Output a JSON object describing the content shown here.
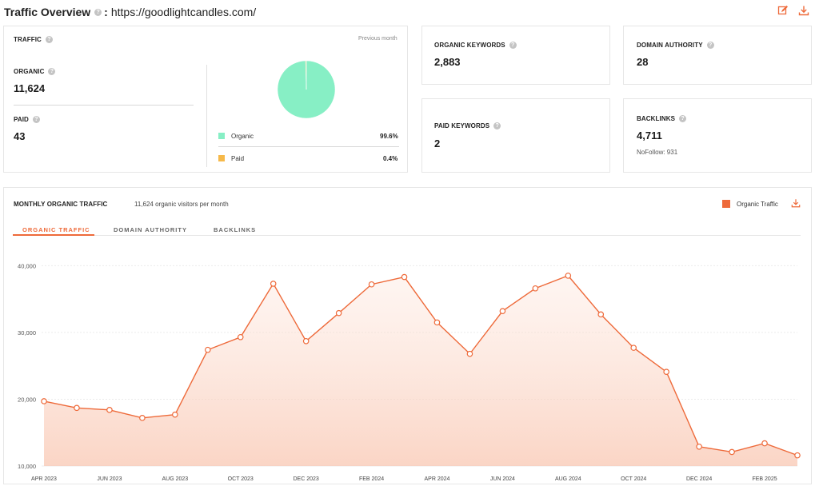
{
  "header": {
    "title": "Traffic Overview",
    "separator": ":",
    "domain": "https://goodlightcandles.com/"
  },
  "traffic_card": {
    "label": "TRAFFIC",
    "period": "Previous month",
    "organic_label": "ORGANIC",
    "organic_value": "11,624",
    "paid_label": "PAID",
    "paid_value": "43",
    "legend": [
      {
        "name": "Organic",
        "percent": "99.6%",
        "color": "#87efc5"
      },
      {
        "name": "Paid",
        "percent": "0.4%",
        "color": "#f6b94a"
      }
    ],
    "pie_share": [
      99.6,
      0.4
    ]
  },
  "organic_keywords": {
    "label": "ORGANIC KEYWORDS",
    "value": "2,883"
  },
  "domain_authority": {
    "label": "DOMAIN AUTHORITY",
    "value": "28"
  },
  "paid_keywords": {
    "label": "PAID KEYWORDS",
    "value": "2"
  },
  "backlinks": {
    "label": "BACKLINKS",
    "value": "4,711",
    "nofollow": "NoFollow: 931"
  },
  "monthly": {
    "title": "MONTHLY ORGANIC TRAFFIC",
    "subtitle": "11,624 organic visitors per month",
    "legend_label": "Organic Traffic",
    "accent": "#ee6a3a",
    "tabs": [
      "ORGANIC TRAFFIC",
      "DOMAIN AUTHORITY",
      "BACKLINKS"
    ]
  },
  "chart_data": {
    "type": "line",
    "x": [
      "APR 2023",
      "MAY 2023",
      "JUN 2023",
      "JUL 2023",
      "AUG 2023",
      "SEP 2023",
      "OCT 2023",
      "NOV 2023",
      "DEC 2023",
      "JAN 2024",
      "FEB 2024",
      "MAR 2024",
      "APR 2024",
      "MAY 2024",
      "JUN 2024",
      "JUL 2024",
      "AUG 2024",
      "SEP 2024",
      "OCT 2024",
      "NOV 2024",
      "DEC 2024",
      "JAN 2025",
      "FEB 2025",
      "MAR 2025"
    ],
    "tick_labels": [
      "APR 2023",
      "",
      "JUN 2023",
      "",
      "AUG 2023",
      "",
      "OCT 2023",
      "",
      "DEC 2023",
      "",
      "FEB 2024",
      "",
      "APR 2024",
      "",
      "JUN 2024",
      "",
      "AUG 2024",
      "",
      "OCT 2024",
      "",
      "DEC 2024",
      "",
      "FEB 2025",
      ""
    ],
    "series": [
      {
        "name": "Organic Traffic",
        "values": [
          19700,
          18700,
          18400,
          17200,
          17700,
          27400,
          29300,
          37300,
          28700,
          32900,
          37200,
          38300,
          31500,
          26800,
          33200,
          36600,
          38500,
          32700,
          27700,
          24100,
          12900,
          12100,
          13400,
          11600
        ]
      }
    ],
    "y_ticks": [
      "10,000",
      "20,000",
      "30,000",
      "40,000"
    ],
    "y_tick_values": [
      10000,
      20000,
      30000,
      40000
    ],
    "ylim": [
      10000,
      41000
    ],
    "grid": true,
    "legend": "top-right"
  }
}
